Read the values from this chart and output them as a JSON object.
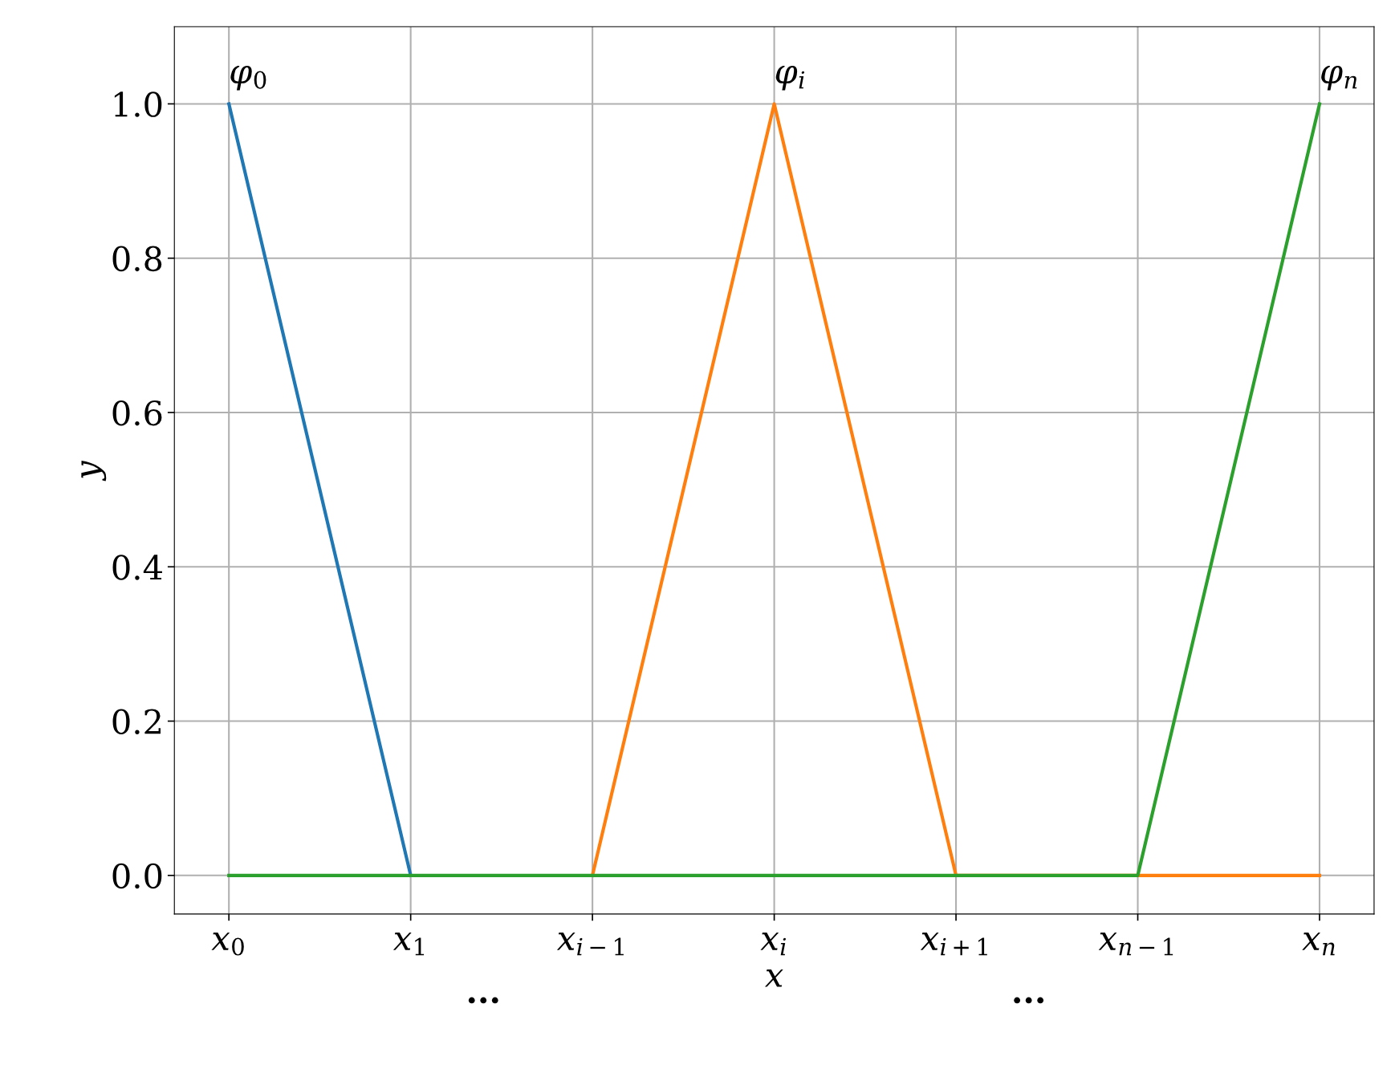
{
  "chart_data": {
    "type": "line",
    "xlabel": "x",
    "ylabel": "y",
    "categories": [
      "x$_{0}$",
      "x$_{1}$",
      "x$_{i−1}$",
      "x$_{i}$",
      "x$_{i+1}$",
      "x$_{n−1}$",
      "x$_{n}$"
    ],
    "series": [
      {
        "name": "φ$_{0}$",
        "color": "#1f77b4",
        "values": [
          1,
          0,
          null,
          null,
          null,
          null,
          null
        ]
      },
      {
        "name": "φ$_{i}$",
        "color": "#ff7f0e",
        "values": [
          null,
          null,
          0,
          1,
          0,
          0,
          0
        ]
      },
      {
        "name": "φ$_{n}$",
        "color": "#2ca02c",
        "values": [
          0,
          0,
          0,
          0,
          0,
          0,
          1
        ]
      }
    ],
    "annotations": [
      "···",
      "···"
    ],
    "ylim": [
      -0.05,
      1.1
    ],
    "yticks": [
      {
        "value": 0,
        "label": "0.0"
      },
      {
        "value": 0.2,
        "label": "0.2"
      },
      {
        "value": 0.4,
        "label": "0.4"
      },
      {
        "value": 0.6,
        "label": "0.6"
      },
      {
        "value": 0.8,
        "label": "0.8"
      },
      {
        "value": 1,
        "label": "1.0"
      }
    ],
    "grid": true,
    "marker": "none",
    "line_style": "solid"
  }
}
